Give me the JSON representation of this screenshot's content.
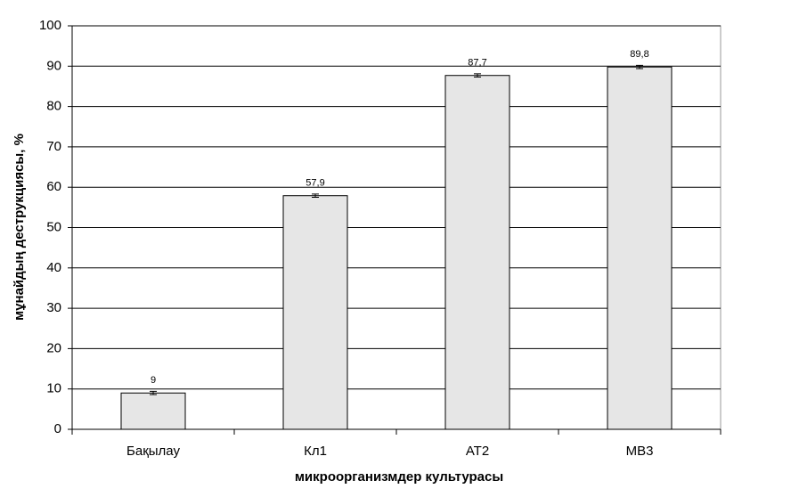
{
  "chart_data": {
    "type": "bar",
    "x_label": "микроорганизмдер культурасы",
    "y_label": "мұнайдың деструкциясы, %",
    "categories": [
      "Бақылау",
      "Кл1",
      "АТ2",
      "МВ3"
    ],
    "values": [
      9,
      57.9,
      87.7,
      89.8
    ],
    "value_labels": [
      "9",
      "57,9",
      "87,7",
      "89,8"
    ],
    "errors": [
      0.4,
      0.4,
      0.4,
      0.4
    ],
    "color": "#e6e6e6",
    "ylim": [
      0,
      100
    ],
    "yticks": [
      0,
      10,
      20,
      30,
      40,
      50,
      60,
      70,
      80,
      90,
      100
    ],
    "grid": true
  }
}
